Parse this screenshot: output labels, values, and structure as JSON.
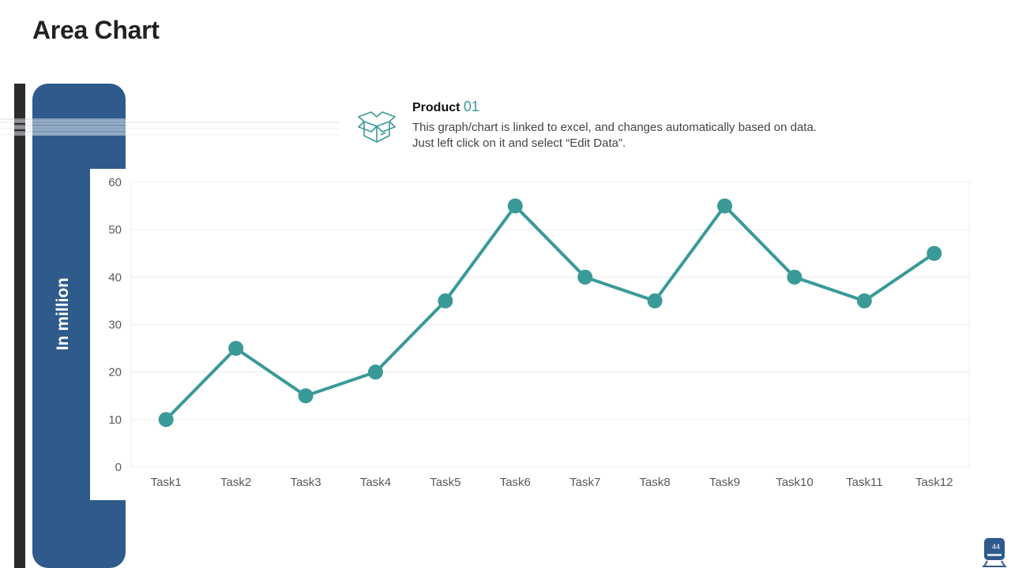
{
  "slide": {
    "title": "Area Chart",
    "page_number": "44",
    "y_axis_caption": "In million"
  },
  "product": {
    "label": "Product",
    "number": "01",
    "description_line1": "This graph/chart is linked to excel, and changes automatically  based on data.",
    "description_line2": "Just left click on it and select “Edit Data”.",
    "icon": "open-box-icon"
  },
  "colors": {
    "panel_blue": "#2e5a8c",
    "dark_bar": "#2b2b2b",
    "series_teal": "#3a9a98",
    "accent_teal": "#3a9a98"
  },
  "chart_data": {
    "type": "line",
    "categories": [
      "Task1",
      "Task2",
      "Task3",
      "Task4",
      "Task5",
      "Task6",
      "Task7",
      "Task8",
      "Task9",
      "Task10",
      "Task11",
      "Task12"
    ],
    "series": [
      {
        "values": [
          10,
          25,
          15,
          20,
          35,
          55,
          40,
          35,
          55,
          40,
          35,
          45
        ]
      }
    ],
    "ylim": [
      0,
      60
    ],
    "yticks": [
      0,
      10,
      20,
      30,
      40,
      50,
      60
    ],
    "ylabel": "In million",
    "grid": true,
    "markers": true
  }
}
